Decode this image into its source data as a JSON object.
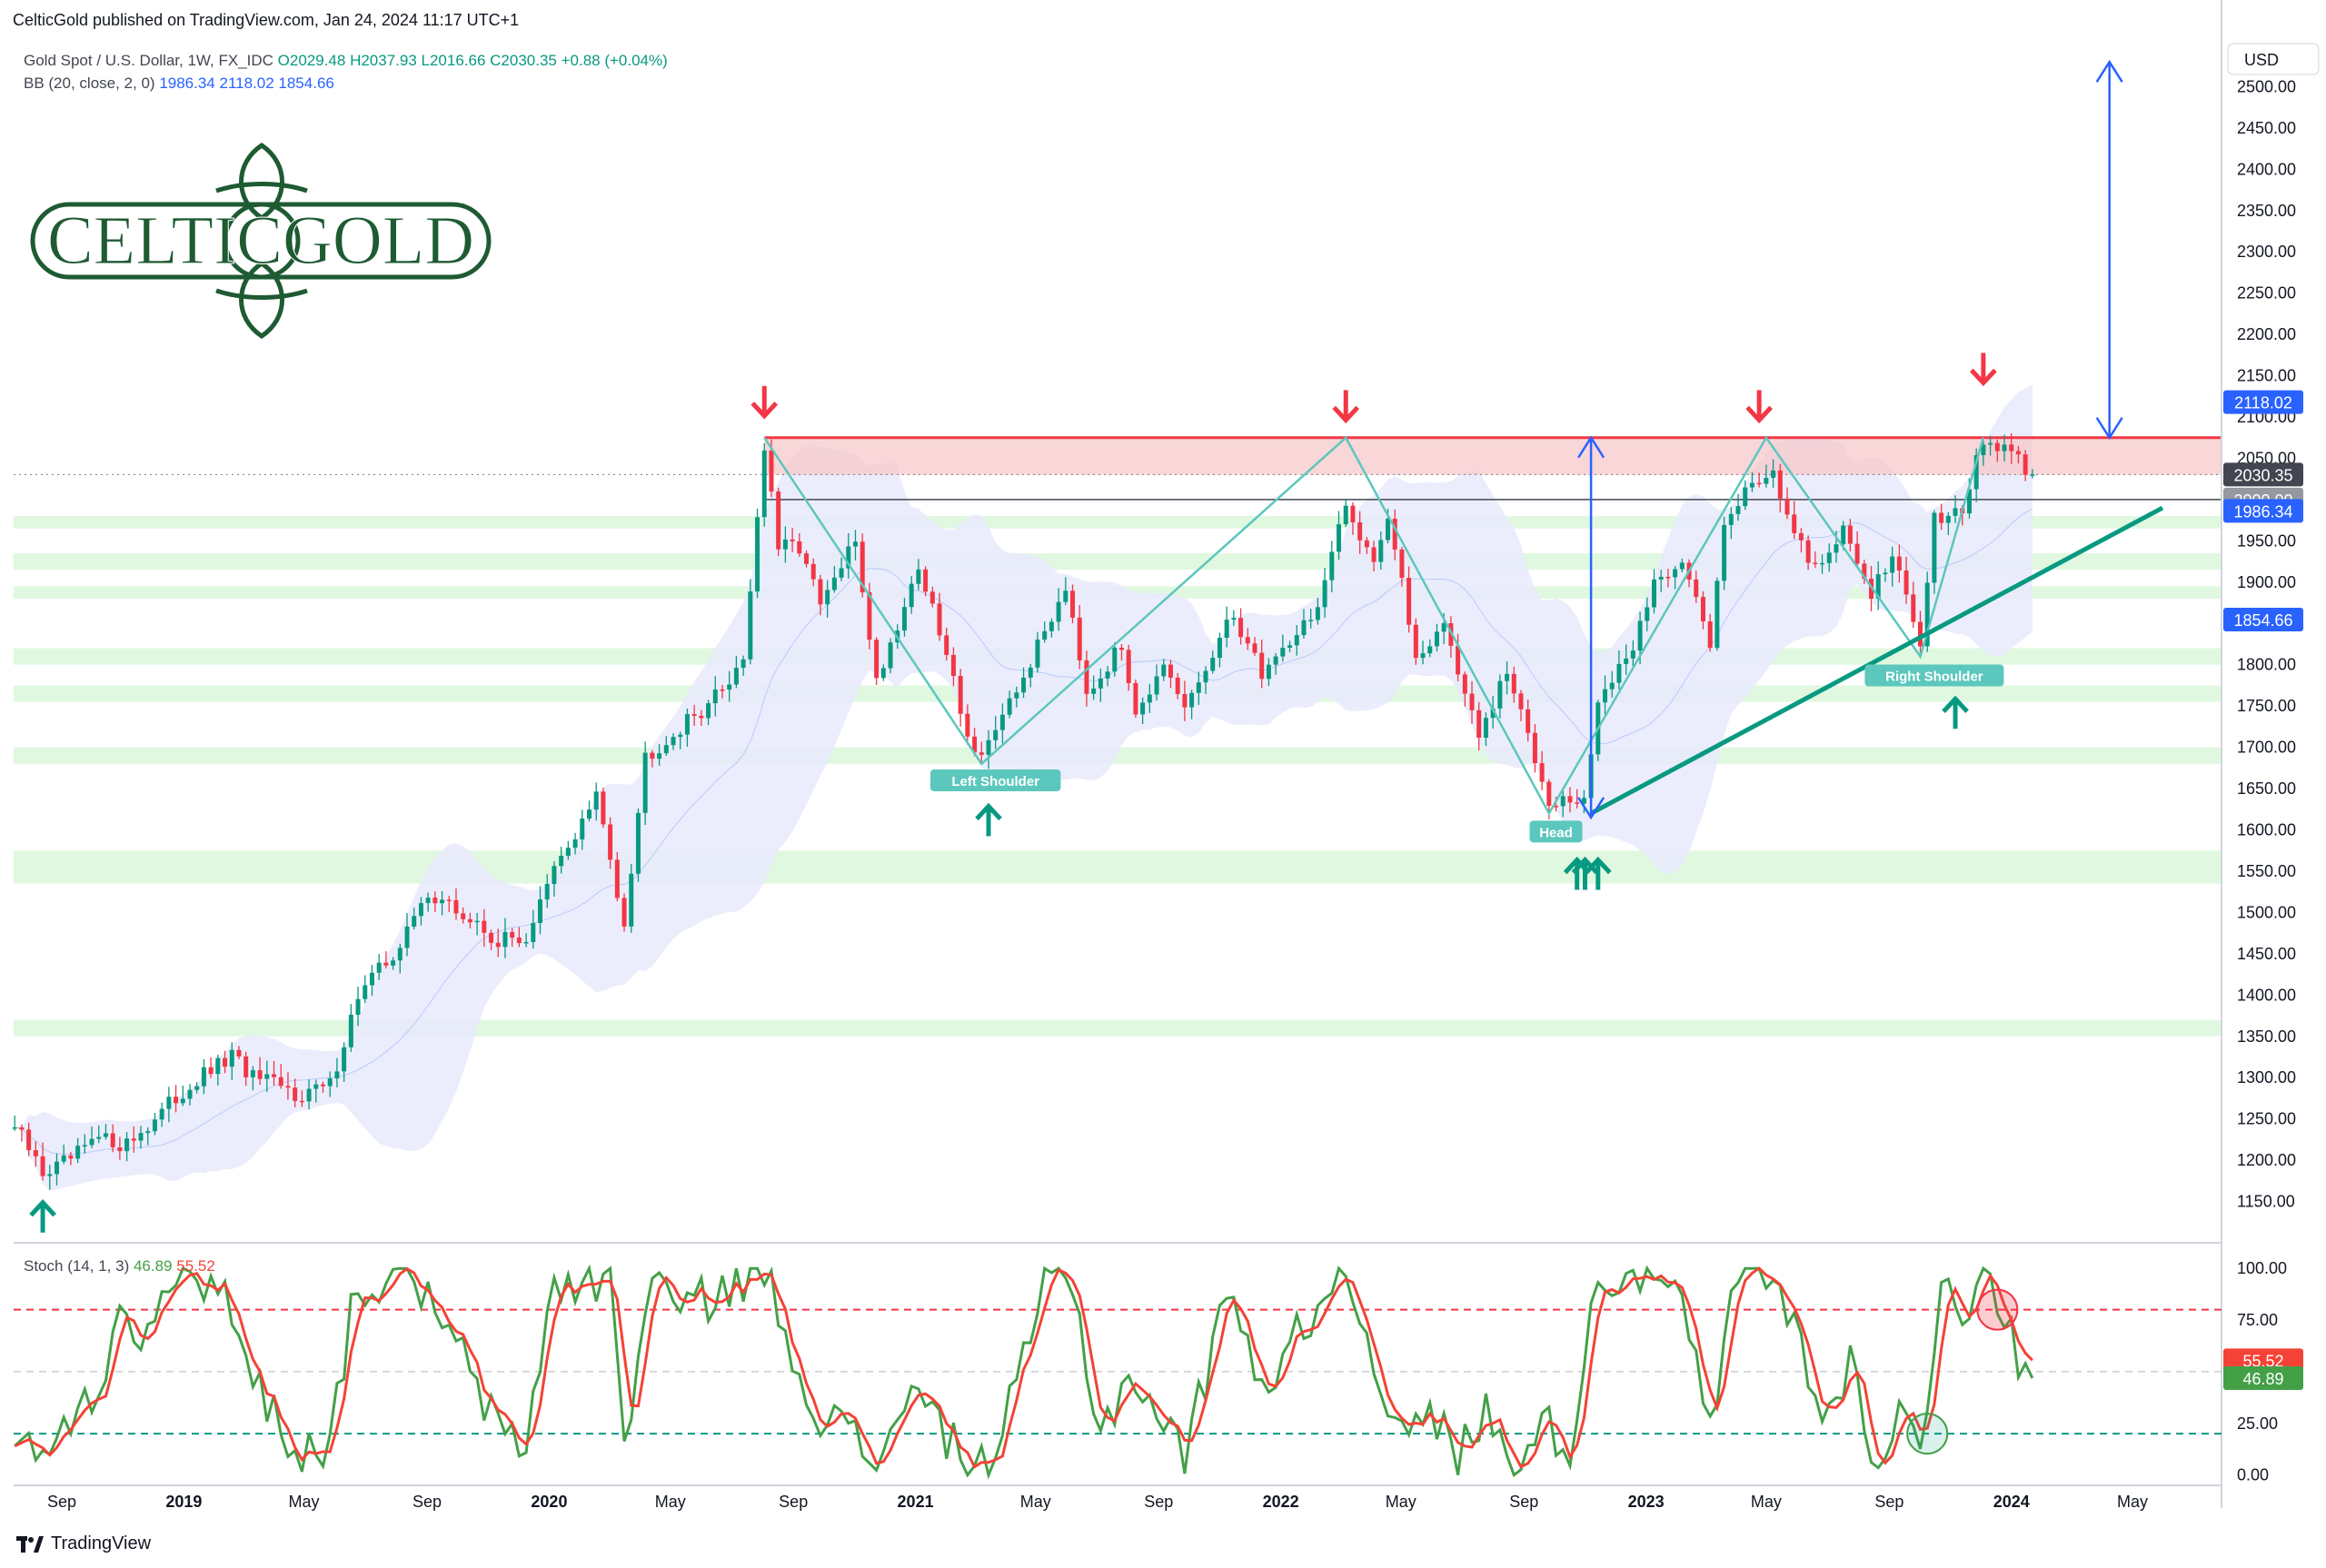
{
  "header": {
    "published": "CelticGold published on TradingView.com, Jan 24, 2024 11:17 UTC+1"
  },
  "legend": {
    "symbol": "Gold Spot / U.S. Dollar, 1W, FX_IDC",
    "ohlc": "O2029.48  H2037.93  L2016.66  C2030.35  +0.88 (+0.04%)",
    "bb_label": "BB (20, close, 2, 0)",
    "bb_values": "1986.34  2118.02  1854.66"
  },
  "logo": {
    "text": "CELTICGOLD",
    "color": "#1e5a32"
  },
  "currency": "USD",
  "stoch_legend": {
    "label": "Stoch (14, 1, 3)",
    "k": "46.89",
    "d": "55.52"
  },
  "footer": {
    "brand": "TradingView"
  },
  "annotations": {
    "left_shoulder": "Left Shoulder",
    "head": "Head",
    "right_shoulder": "Right Shoulder"
  },
  "price_badges": {
    "upper_bb": "2118.02",
    "last": "2030.35",
    "middle_bb": "1986.34",
    "lower_bb": "1854.66",
    "hidden": "2000.00"
  },
  "stoch_badges": {
    "d": "55.52",
    "k": "46.89"
  },
  "colors": {
    "up": "#089981",
    "down": "#f23645",
    "bb": "#2962ff",
    "bb_fill": "#e8eafc",
    "resistance": "#f23645",
    "support_zone": "#d6f5d6",
    "trendline": "#089981",
    "pattern": "#5cc7bd",
    "stoch_k": "#43a047",
    "stoch_d": "#f44336"
  },
  "chart_data": [
    {
      "type": "candlestick",
      "title": "Gold Spot / U.S. Dollar, 1W, FX_IDC",
      "ylim": [
        1100,
        2550
      ],
      "y_ticks": [
        1150,
        1200,
        1250,
        1300,
        1350,
        1400,
        1450,
        1500,
        1550,
        1600,
        1650,
        1700,
        1750,
        1800,
        1850,
        1900,
        1950,
        2000,
        2050,
        2100,
        2150,
        2200,
        2250,
        2300,
        2350,
        2400,
        2450,
        2500
      ],
      "x_ticks": [
        {
          "label": "Sep",
          "date": "2018-09-01"
        },
        {
          "label": "2019",
          "date": "2019-01-01",
          "year": true
        },
        {
          "label": "May",
          "date": "2019-05-01"
        },
        {
          "label": "Sep",
          "date": "2019-09-01"
        },
        {
          "label": "2020",
          "date": "2020-01-01",
          "year": true
        },
        {
          "label": "May",
          "date": "2020-05-01"
        },
        {
          "label": "Sep",
          "date": "2020-09-01"
        },
        {
          "label": "2021",
          "date": "2021-01-01",
          "year": true
        },
        {
          "label": "May",
          "date": "2021-05-01"
        },
        {
          "label": "Sep",
          "date": "2021-09-01"
        },
        {
          "label": "2022",
          "date": "2022-01-01",
          "year": true
        },
        {
          "label": "May",
          "date": "2022-05-01"
        },
        {
          "label": "Sep",
          "date": "2022-09-01"
        },
        {
          "label": "2023",
          "date": "2023-01-01",
          "year": true
        },
        {
          "label": "May",
          "date": "2023-05-01"
        },
        {
          "label": "Sep",
          "date": "2023-09-01"
        },
        {
          "label": "2024",
          "date": "2024-01-01",
          "year": true
        },
        {
          "label": "May",
          "date": "2024-05-01"
        }
      ],
      "close_path": [
        [
          "2018-07-16",
          1240
        ],
        [
          "2018-08-13",
          1185
        ],
        [
          "2018-09-03",
          1195
        ],
        [
          "2018-10-08",
          1225
        ],
        [
          "2018-11-05",
          1220
        ],
        [
          "2018-12-03",
          1250
        ],
        [
          "2019-01-07",
          1290
        ],
        [
          "2019-02-18",
          1325
        ],
        [
          "2019-03-11",
          1300
        ],
        [
          "2019-04-22",
          1280
        ],
        [
          "2019-05-27",
          1290
        ],
        [
          "2019-06-24",
          1400
        ],
        [
          "2019-08-05",
          1460
        ],
        [
          "2019-09-02",
          1525
        ],
        [
          "2019-10-07",
          1495
        ],
        [
          "2019-11-11",
          1465
        ],
        [
          "2019-12-09",
          1470
        ],
        [
          "2020-01-06",
          1550
        ],
        [
          "2020-02-17",
          1640
        ],
        [
          "2020-03-16",
          1490
        ],
        [
          "2020-04-06",
          1690
        ],
        [
          "2020-05-18",
          1730
        ],
        [
          "2020-06-22",
          1770
        ],
        [
          "2020-07-13",
          1810
        ],
        [
          "2020-08-03",
          2063
        ],
        [
          "2020-08-17",
          1940
        ],
        [
          "2020-09-07",
          1945
        ],
        [
          "2020-09-28",
          1870
        ],
        [
          "2020-11-02",
          1950
        ],
        [
          "2020-11-23",
          1780
        ],
        [
          "2021-01-04",
          1920
        ],
        [
          "2021-02-01",
          1810
        ],
        [
          "2021-03-01",
          1690
        ],
        [
          "2021-03-29",
          1730
        ],
        [
          "2021-05-10",
          1840
        ],
        [
          "2021-06-01",
          1900
        ],
        [
          "2021-06-21",
          1770
        ],
        [
          "2021-07-26",
          1820
        ],
        [
          "2021-08-09",
          1750
        ],
        [
          "2021-09-06",
          1790
        ],
        [
          "2021-09-27",
          1745
        ],
        [
          "2021-11-15",
          1860
        ],
        [
          "2021-12-13",
          1790
        ],
        [
          "2022-01-10",
          1830
        ],
        [
          "2022-02-07",
          1870
        ],
        [
          "2022-03-07",
          1990
        ],
        [
          "2022-04-04",
          1930
        ],
        [
          "2022-04-18",
          1980
        ],
        [
          "2022-05-16",
          1810
        ],
        [
          "2022-06-13",
          1850
        ],
        [
          "2022-07-18",
          1710
        ],
        [
          "2022-08-15",
          1790
        ],
        [
          "2022-09-26",
          1640
        ],
        [
          "2022-10-31",
          1630
        ],
        [
          "2022-11-14",
          1760
        ],
        [
          "2022-12-12",
          1800
        ],
        [
          "2023-01-09",
          1900
        ],
        [
          "2023-02-06",
          1930
        ],
        [
          "2023-03-06",
          1820
        ],
        [
          "2023-03-20",
          1980
        ],
        [
          "2023-04-10",
          2010
        ],
        [
          "2023-05-08",
          2040
        ],
        [
          "2023-05-29",
          1950
        ],
        [
          "2023-06-19",
          1920
        ],
        [
          "2023-07-17",
          1960
        ],
        [
          "2023-08-14",
          1890
        ],
        [
          "2023-09-04",
          1930
        ],
        [
          "2023-10-02",
          1830
        ],
        [
          "2023-10-16",
          1980
        ],
        [
          "2023-11-13",
          1990
        ],
        [
          "2023-12-04",
          2070
        ],
        [
          "2023-12-25",
          2060
        ],
        [
          "2024-01-22",
          2030
        ]
      ],
      "last_candle": {
        "open": 2029.48,
        "high": 2037.93,
        "low": 2016.66,
        "close": 2030.35
      },
      "bollinger_bands": {
        "period": 20,
        "stddev": 2,
        "middle": 1986.34,
        "upper": 2118.02,
        "lower": 1854.66
      },
      "resistance_zone": {
        "from": 2030,
        "to": 2075,
        "start_date": "2020-08-03"
      },
      "neckline": 2000,
      "support_zones": [
        [
          1350,
          1370
        ],
        [
          1535,
          1575
        ],
        [
          1680,
          1700
        ],
        [
          1755,
          1775
        ],
        [
          1800,
          1820
        ],
        [
          1880,
          1895
        ],
        [
          1915,
          1935
        ],
        [
          1965,
          1980
        ]
      ],
      "trendline": [
        [
          "2022-11-07",
          1620
        ],
        [
          "2024-05-31",
          1990
        ]
      ],
      "pattern_zigzag": [
        [
          "2020-08-03",
          2075
        ],
        [
          "2021-03-08",
          1680
        ],
        [
          "2022-03-07",
          2075
        ],
        [
          "2022-09-26",
          1620
        ],
        [
          "2023-05-01",
          2075
        ],
        [
          "2023-10-02",
          1810
        ],
        [
          "2023-12-04",
          2075
        ]
      ],
      "target_arrow": {
        "date": "2024-04-08",
        "from": 2075,
        "to": 2530
      },
      "head_arrow": {
        "date": "2022-11-07",
        "from": 1615,
        "to": 2075
      },
      "red_arrows": [
        [
          "2020-08-03",
          2120
        ],
        [
          "2022-03-07",
          2115
        ],
        [
          "2023-04-24",
          2115
        ],
        [
          "2023-12-04",
          2160
        ]
      ],
      "green_arrows": [
        [
          "2018-08-13",
          1130
        ],
        [
          "2021-03-15",
          1610
        ],
        [
          "2022-10-24",
          1545
        ],
        [
          "2022-11-01",
          1545
        ],
        [
          "2022-11-14",
          1545
        ],
        [
          "2023-11-06",
          1740
        ]
      ]
    },
    {
      "type": "line",
      "title": "Stoch (14, 1, 3)",
      "ylim": [
        -5,
        108
      ],
      "y_ticks": [
        0,
        25,
        50,
        75,
        100
      ],
      "levels": [
        20,
        50,
        80
      ],
      "series": [
        {
          "name": "%K",
          "value": 46.89
        },
        {
          "name": "%D",
          "value": 55.52
        }
      ],
      "k_path": [
        [
          "2018-07-16",
          15
        ],
        [
          "2018-08-06",
          8
        ],
        [
          "2018-09-03",
          30
        ],
        [
          "2018-10-01",
          35
        ],
        [
          "2018-10-29",
          80
        ],
        [
          "2018-11-19",
          72
        ],
        [
          "2018-12-17",
          95
        ],
        [
          "2019-01-07",
          90
        ],
        [
          "2019-02-04",
          98
        ],
        [
          "2019-03-04",
          55
        ],
        [
          "2019-04-01",
          30
        ],
        [
          "2019-04-29",
          10
        ],
        [
          "2019-05-27",
          18
        ],
        [
          "2019-06-24",
          95
        ],
        [
          "2019-07-22",
          88
        ],
        [
          "2019-08-19",
          98
        ],
        [
          "2019-09-16",
          70
        ],
        [
          "2019-10-14",
          52
        ],
        [
          "2019-11-11",
          20
        ],
        [
          "2019-12-09",
          15
        ],
        [
          "2020-01-06",
          95
        ],
        [
          "2020-02-03",
          90
        ],
        [
          "2020-03-02",
          98
        ],
        [
          "2020-03-16",
          15
        ],
        [
          "2020-04-13",
          98
        ],
        [
          "2020-05-11",
          80
        ],
        [
          "2020-06-08",
          85
        ],
        [
          "2020-07-06",
          95
        ],
        [
          "2020-08-03",
          98
        ],
        [
          "2020-08-31",
          60
        ],
        [
          "2020-09-28",
          30
        ],
        [
          "2020-10-26",
          20
        ],
        [
          "2020-11-23",
          5
        ],
        [
          "2020-12-21",
          40
        ],
        [
          "2021-01-18",
          30
        ],
        [
          "2021-02-15",
          8
        ],
        [
          "2021-03-15",
          5
        ],
        [
          "2021-04-12",
          40
        ],
        [
          "2021-05-10",
          95
        ],
        [
          "2021-06-07",
          90
        ],
        [
          "2021-07-05",
          20
        ],
        [
          "2021-08-02",
          50
        ],
        [
          "2021-08-30",
          30
        ],
        [
          "2021-09-27",
          10
        ],
        [
          "2021-10-25",
          60
        ],
        [
          "2021-11-15",
          95
        ],
        [
          "2021-12-13",
          40
        ],
        [
          "2022-01-10",
          60
        ],
        [
          "2022-02-07",
          85
        ],
        [
          "2022-03-07",
          98
        ],
        [
          "2022-04-04",
          60
        ],
        [
          "2022-05-02",
          15
        ],
        [
          "2022-05-30",
          30
        ],
        [
          "2022-06-27",
          10
        ],
        [
          "2022-07-25",
          30
        ],
        [
          "2022-08-22",
          5
        ],
        [
          "2022-09-19",
          25
        ],
        [
          "2022-10-17",
          15
        ],
        [
          "2022-11-14",
          95
        ],
        [
          "2022-12-12",
          98
        ],
        [
          "2023-01-09",
          100
        ],
        [
          "2023-02-06",
          80
        ],
        [
          "2023-03-06",
          20
        ],
        [
          "2023-04-03",
          98
        ],
        [
          "2023-05-01",
          95
        ],
        [
          "2023-05-29",
          75
        ],
        [
          "2023-06-26",
          25
        ],
        [
          "2023-07-24",
          55
        ],
        [
          "2023-08-21",
          5
        ],
        [
          "2023-09-18",
          35
        ],
        [
          "2023-10-02",
          5
        ],
        [
          "2023-10-23",
          98
        ],
        [
          "2023-11-13",
          80
        ],
        [
          "2023-12-04",
          100
        ],
        [
          "2023-12-25",
          70
        ],
        [
          "2024-01-22",
          46.89
        ]
      ]
    }
  ]
}
